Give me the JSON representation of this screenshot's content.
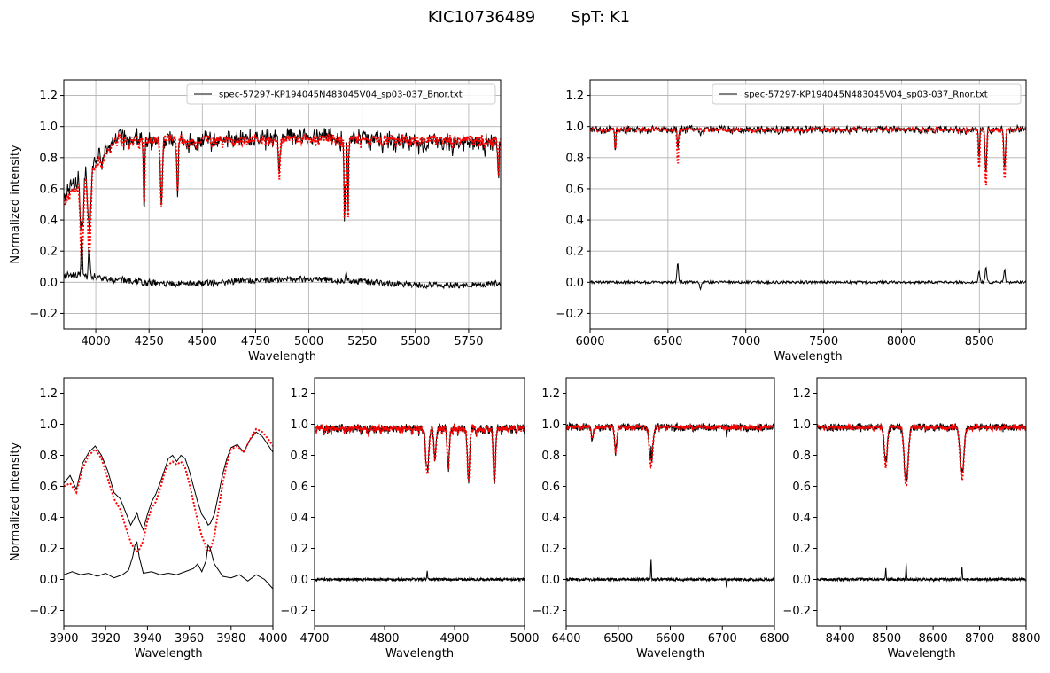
{
  "figure": {
    "title": "KIC10736489       SpT: K1"
  },
  "colors": {
    "observed": "#000000",
    "model": "#ff0000",
    "grid": "#b0b0b0"
  },
  "chart_data": [
    {
      "id": "top-blue",
      "type": "line",
      "xlabel": "Wavelength",
      "ylabel": "Normalized intensity",
      "xlim": [
        3850,
        5900
      ],
      "ylim": [
        -0.3,
        1.3
      ],
      "xticks": [
        4000,
        4250,
        4500,
        4750,
        5000,
        5250,
        5500,
        5750
      ],
      "yticks": [
        -0.2,
        0.0,
        0.2,
        0.4,
        0.6,
        0.8,
        1.0,
        1.2
      ],
      "grid": true,
      "legend": {
        "position": "top-right",
        "label": "spec-57297-KP194045N483045V04_sp03-037_Bnor.txt"
      },
      "series": [
        {
          "name": "spec-57297-KP194045N483045V04_sp03-037_Bnor.txt",
          "role": "observed",
          "style": "solid"
        },
        {
          "role": "model",
          "style": "dotted"
        },
        {
          "role": "residual",
          "style": "solid"
        }
      ],
      "lines": [
        {
          "center": 3934,
          "depth": 0.55,
          "width": 6
        },
        {
          "center": 3969,
          "depth": 0.55,
          "width": 6
        },
        {
          "center": 4227,
          "depth": 0.45,
          "width": 3
        },
        {
          "center": 4308,
          "depth": 0.45,
          "width": 4
        },
        {
          "center": 4384,
          "depth": 0.35,
          "width": 3
        },
        {
          "center": 4861,
          "depth": 0.25,
          "width": 3
        },
        {
          "center": 5167,
          "depth": 0.45,
          "width": 2
        },
        {
          "center": 5173,
          "depth": 0.5,
          "width": 2
        },
        {
          "center": 5184,
          "depth": 0.5,
          "width": 2
        },
        {
          "center": 5890,
          "depth": 0.3,
          "width": 2
        }
      ],
      "residual_spikes": [
        {
          "center": 3934,
          "height": 0.26
        },
        {
          "center": 3969,
          "height": 0.2
        },
        {
          "center": 5175,
          "height": 0.07
        }
      ]
    },
    {
      "id": "top-red",
      "type": "line",
      "xlabel": "Wavelength",
      "ylabel": "",
      "xlim": [
        6000,
        8800
      ],
      "ylim": [
        -0.3,
        1.3
      ],
      "xticks": [
        6000,
        6500,
        7000,
        7500,
        8000,
        8500
      ],
      "yticks": [
        -0.2,
        0.0,
        0.2,
        0.4,
        0.6,
        0.8,
        1.0,
        1.2
      ],
      "grid": true,
      "legend": {
        "position": "top-right",
        "label": "spec-57297-KP194045N483045V04_sp03-037_Rnor.txt"
      },
      "series": [
        {
          "name": "spec-57297-KP194045N483045V04_sp03-037_Rnor.txt",
          "role": "observed",
          "style": "solid"
        },
        {
          "role": "model",
          "style": "dotted"
        },
        {
          "role": "residual",
          "style": "solid"
        }
      ],
      "lines": [
        {
          "center": 6563,
          "depth": 0.24,
          "width": 4
        },
        {
          "center": 6162,
          "depth": 0.15,
          "width": 3
        },
        {
          "center": 8498,
          "depth": 0.25,
          "width": 4
        },
        {
          "center": 8542,
          "depth": 0.37,
          "width": 5
        },
        {
          "center": 8662,
          "depth": 0.33,
          "width": 5
        }
      ],
      "residual_spikes": [
        {
          "center": 6563,
          "height": 0.13
        },
        {
          "center": 6708,
          "height": -0.05
        },
        {
          "center": 8498,
          "height": 0.07
        },
        {
          "center": 8542,
          "height": 0.1
        },
        {
          "center": 8662,
          "height": 0.08
        }
      ]
    },
    {
      "id": "zoom-cahk",
      "type": "line",
      "xlabel": "Wavelength",
      "ylabel": "Normalized intensity",
      "xlim": [
        3900,
        4000
      ],
      "ylim": [
        -0.3,
        1.3
      ],
      "xticks": [
        3900,
        3920,
        3940,
        3960,
        3980,
        4000
      ],
      "yticks": [
        -0.2,
        0.0,
        0.2,
        0.4,
        0.6,
        0.8,
        1.0,
        1.2
      ],
      "grid": false,
      "series": [
        {
          "role": "observed",
          "x": [
            3900,
            3903,
            3906,
            3909,
            3912,
            3915,
            3918,
            3921,
            3924,
            3927,
            3930,
            3932,
            3934,
            3935,
            3936,
            3938,
            3940,
            3942,
            3944,
            3946,
            3948,
            3950,
            3952,
            3954,
            3956,
            3958,
            3960,
            3962,
            3964,
            3966,
            3968,
            3969,
            3970,
            3972,
            3974,
            3976,
            3978,
            3980,
            3983,
            3986,
            3989,
            3992,
            3995,
            3998,
            4000
          ],
          "y": [
            0.62,
            0.67,
            0.58,
            0.75,
            0.82,
            0.86,
            0.8,
            0.7,
            0.56,
            0.52,
            0.42,
            0.35,
            0.4,
            0.43,
            0.38,
            0.32,
            0.42,
            0.5,
            0.55,
            0.62,
            0.7,
            0.78,
            0.8,
            0.76,
            0.8,
            0.78,
            0.7,
            0.6,
            0.5,
            0.42,
            0.38,
            0.35,
            0.36,
            0.42,
            0.55,
            0.68,
            0.78,
            0.85,
            0.87,
            0.82,
            0.9,
            0.95,
            0.92,
            0.86,
            0.82
          ]
        },
        {
          "role": "model",
          "x": [
            3900,
            3903,
            3906,
            3909,
            3912,
            3915,
            3918,
            3921,
            3924,
            3927,
            3930,
            3932,
            3934,
            3935,
            3936,
            3938,
            3940,
            3942,
            3944,
            3946,
            3948,
            3950,
            3952,
            3954,
            3956,
            3958,
            3960,
            3962,
            3964,
            3966,
            3968,
            3969,
            3970,
            3972,
            3974,
            3976,
            3978,
            3980,
            3983,
            3986,
            3989,
            3992,
            3995,
            3998,
            4000
          ],
          "y": [
            0.6,
            0.62,
            0.56,
            0.72,
            0.8,
            0.84,
            0.78,
            0.65,
            0.52,
            0.45,
            0.32,
            0.24,
            0.19,
            0.18,
            0.19,
            0.25,
            0.38,
            0.46,
            0.5,
            0.58,
            0.68,
            0.74,
            0.76,
            0.74,
            0.76,
            0.72,
            0.62,
            0.5,
            0.38,
            0.28,
            0.21,
            0.18,
            0.19,
            0.28,
            0.45,
            0.62,
            0.75,
            0.84,
            0.86,
            0.82,
            0.9,
            0.97,
            0.95,
            0.9,
            0.86
          ]
        },
        {
          "role": "residual",
          "x": [
            3900,
            3904,
            3908,
            3912,
            3916,
            3920,
            3924,
            3928,
            3931,
            3933,
            3934,
            3935,
            3936,
            3938,
            3942,
            3946,
            3950,
            3954,
            3958,
            3962,
            3964,
            3966,
            3968,
            3969,
            3970,
            3972,
            3976,
            3980,
            3984,
            3988,
            3992,
            3996,
            4000
          ],
          "y": [
            0.03,
            0.05,
            0.03,
            0.04,
            0.02,
            0.04,
            0.01,
            0.03,
            0.06,
            0.15,
            0.22,
            0.24,
            0.15,
            0.04,
            0.05,
            0.03,
            0.04,
            0.03,
            0.05,
            0.07,
            0.1,
            0.05,
            0.12,
            0.22,
            0.2,
            0.1,
            0.02,
            0.01,
            0.03,
            -0.01,
            0.03,
            0.0,
            -0.06
          ]
        }
      ]
    },
    {
      "id": "zoom-hbeta",
      "type": "line",
      "xlabel": "Wavelength",
      "ylabel": "",
      "xlim": [
        4700,
        5000
      ],
      "ylim": [
        -0.3,
        1.3
      ],
      "xticks": [
        4700,
        4800,
        4900,
        5000
      ],
      "yticks": [
        -0.2,
        0.0,
        0.2,
        0.4,
        0.6,
        0.8,
        1.0,
        1.2
      ],
      "grid": false,
      "series": [
        {
          "role": "observed",
          "style": "solid"
        },
        {
          "role": "model",
          "style": "dotted"
        },
        {
          "role": "residual",
          "style": "solid"
        }
      ],
      "lines": [
        {
          "center": 4861,
          "depth": 0.3,
          "width": 2
        },
        {
          "center": 4872,
          "depth": 0.2,
          "width": 1.5
        },
        {
          "center": 4891,
          "depth": 0.25,
          "width": 1.5
        },
        {
          "center": 4920,
          "depth": 0.35,
          "width": 1.5
        },
        {
          "center": 4957,
          "depth": 0.35,
          "width": 1.5
        }
      ],
      "residual_spikes": [
        {
          "center": 4861,
          "height": 0.05
        }
      ]
    },
    {
      "id": "zoom-halpha",
      "type": "line",
      "xlabel": "Wavelength",
      "ylabel": "",
      "xlim": [
        6400,
        6800
      ],
      "ylim": [
        -0.3,
        1.3
      ],
      "xticks": [
        6400,
        6500,
        6600,
        6700,
        6800
      ],
      "yticks": [
        -0.2,
        0.0,
        0.2,
        0.4,
        0.6,
        0.8,
        1.0,
        1.2
      ],
      "grid": false,
      "series": [
        {
          "role": "observed",
          "style": "solid"
        },
        {
          "role": "model",
          "style": "dotted"
        },
        {
          "role": "residual",
          "style": "solid"
        }
      ],
      "lines": [
        {
          "center": 6563,
          "depth": 0.25,
          "width": 3
        },
        {
          "center": 6495,
          "depth": 0.16,
          "width": 2
        },
        {
          "center": 6450,
          "depth": 0.07,
          "width": 2
        }
      ],
      "residual_spikes": [
        {
          "center": 6563,
          "height": 0.13
        },
        {
          "center": 6708,
          "height": -0.05
        }
      ]
    },
    {
      "id": "zoom-cat",
      "type": "line",
      "xlabel": "Wavelength",
      "ylabel": "",
      "xlim": [
        8350,
        8800
      ],
      "ylim": [
        -0.3,
        1.3
      ],
      "xticks": [
        8400,
        8500,
        8600,
        8700,
        8800
      ],
      "yticks": [
        -0.2,
        0.0,
        0.2,
        0.4,
        0.6,
        0.8,
        1.0,
        1.2
      ],
      "grid": false,
      "series": [
        {
          "role": "observed",
          "style": "solid"
        },
        {
          "role": "model",
          "style": "dotted"
        },
        {
          "role": "residual",
          "style": "solid"
        }
      ],
      "lines": [
        {
          "center": 8498,
          "depth": 0.25,
          "width": 3
        },
        {
          "center": 8542,
          "depth": 0.38,
          "width": 4
        },
        {
          "center": 8662,
          "depth": 0.33,
          "width": 4
        }
      ],
      "residual_spikes": [
        {
          "center": 8498,
          "height": 0.07
        },
        {
          "center": 8542,
          "height": 0.1
        },
        {
          "center": 8662,
          "height": 0.08
        }
      ]
    }
  ]
}
